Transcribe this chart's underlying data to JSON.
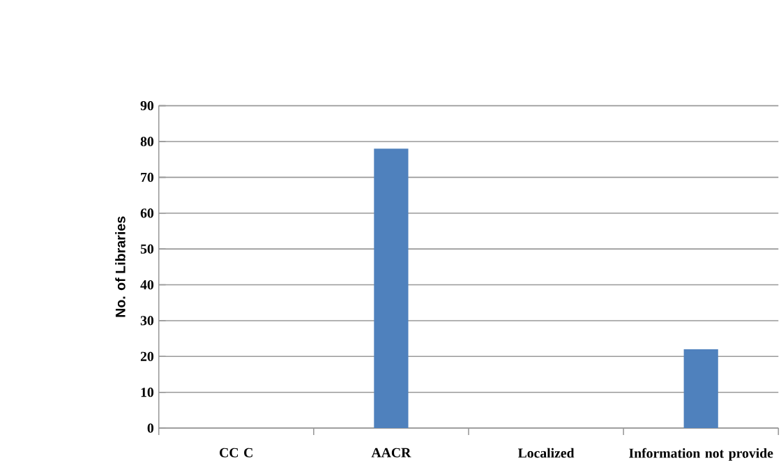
{
  "chart_data": {
    "type": "bar",
    "ylabel": "No. of Libraries",
    "categories": [
      "CC C",
      "AACR",
      "Localized",
      "Information not provide"
    ],
    "values": [
      0,
      78,
      0,
      22
    ],
    "color": "#4f81bd",
    "ylim": [
      0,
      90
    ],
    "yticks": [
      0,
      10,
      20,
      30,
      40,
      50,
      60,
      70,
      80,
      90
    ],
    "grid": "y"
  }
}
